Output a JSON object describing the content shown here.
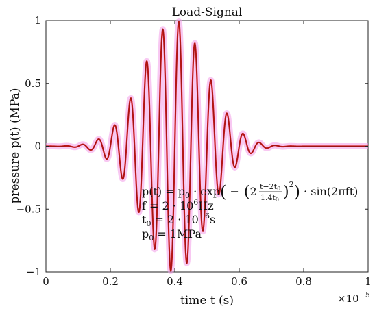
{
  "chart_data": {
    "type": "line",
    "title": "Load-Signal",
    "xlabel": "time t (s)",
    "ylabel": "pressure p(t) (MPa)",
    "xlim": [
      0,
      1e-05
    ],
    "ylim": [
      -1,
      1
    ],
    "x_ticks": [
      0,
      2e-06,
      4e-06,
      6e-06,
      8e-06,
      1e-05
    ],
    "x_tick_labels": [
      "0",
      "0.2",
      "0.4",
      "0.6",
      "0.8",
      "1"
    ],
    "x_multiplier": "×10",
    "x_multiplier_exp": "−5",
    "y_ticks": [
      -1,
      -0.5,
      0,
      0.5,
      1
    ],
    "y_tick_labels": [
      "−1",
      "−0.5",
      "0",
      "0.5",
      "1"
    ],
    "grid": false,
    "series": [
      {
        "formula": "p(t) = p0 · exp(−(2(t−2t0)/(1.4t0))²) · sin(2πft)",
        "color": "#cc1a1a",
        "glow_color": "#f29be8",
        "f_hz": 2000000,
        "t0_s": 2e-06,
        "p0_mpa": 1,
        "x_start": 0,
        "x_end": 1e-05,
        "samples": 800
      }
    ],
    "annotations": {
      "line1": {
        "lhs": "p(t) = p",
        "sub0": "0",
        "mid": " · exp",
        "open": "(",
        "minus": " −",
        "two": "2",
        "num": "t−2t",
        "num_sub": "0",
        "den": "1.4t",
        "den_sub": "0",
        "sq": "2",
        "rest": " · sin(2πft)"
      },
      "line2": {
        "text": "f = 2 · 10",
        "sup": "6",
        "unit": "Hz"
      },
      "line3": {
        "text": "t",
        "sub": "0",
        "eq": " = 2 · 10",
        "sup": "−6",
        "unit": "s"
      },
      "line4": {
        "text": "p",
        "sub": "0",
        "eq": " = 1MPa"
      }
    }
  }
}
